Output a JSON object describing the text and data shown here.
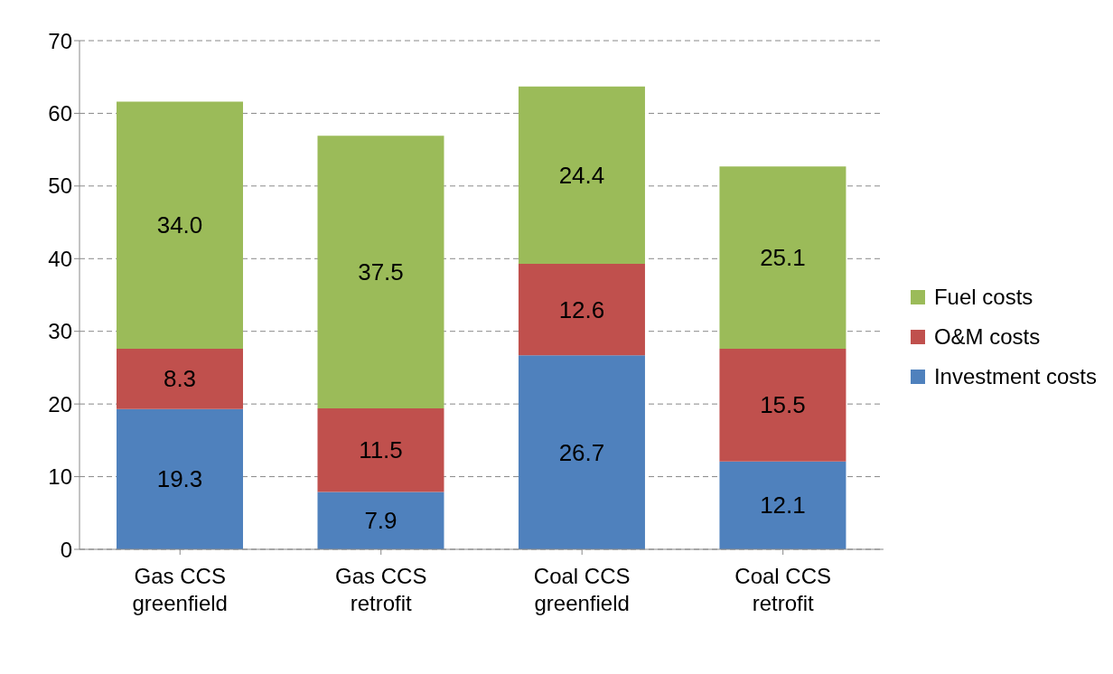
{
  "chart_data": {
    "type": "bar",
    "stacked": true,
    "categories": [
      "Gas CCS greenfield",
      "Gas CCS retrofit",
      "Coal CCS greenfield",
      "Coal CCS retrofit"
    ],
    "series": [
      {
        "name": "Investment costs",
        "color": "#4f81bd",
        "values": [
          19.3,
          7.9,
          26.7,
          12.1
        ],
        "value_labels": [
          "19.3",
          "7.9",
          "26.7",
          "12.1"
        ]
      },
      {
        "name": "O&M costs",
        "color": "#c0504d",
        "values": [
          8.3,
          11.5,
          12.6,
          15.5
        ],
        "value_labels": [
          "8.3",
          "11.5",
          "12.6",
          "15.5"
        ]
      },
      {
        "name": "Fuel costs",
        "color": "#9bbb59",
        "values": [
          34.0,
          37.5,
          24.4,
          25.1
        ],
        "value_labels": [
          "34.0",
          "37.5",
          "24.4",
          "25.1"
        ]
      }
    ],
    "ylim": [
      0,
      70
    ],
    "yticks": [
      0,
      10,
      20,
      30,
      40,
      50,
      60,
      70
    ],
    "grid": "y",
    "legend": "right"
  }
}
